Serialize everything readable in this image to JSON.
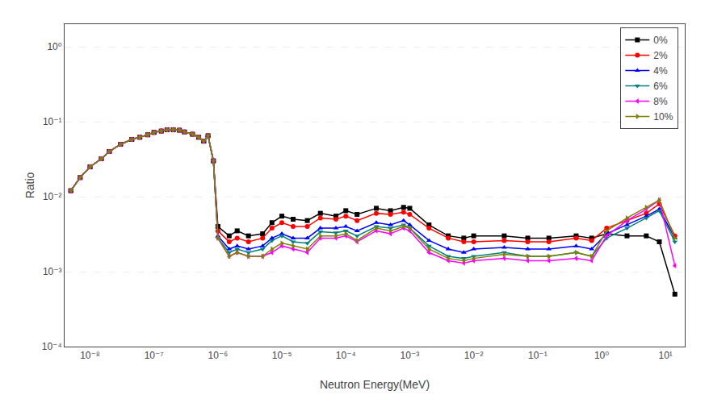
{
  "chart_data": {
    "type": "line",
    "xlabel": "Neutron Energy(MeV)",
    "ylabel": "Ratio",
    "log": true,
    "grid": "y",
    "legend": "upper right",
    "xlim": [
      4e-09,
      20
    ],
    "ylim": [
      0.0001,
      2.0
    ],
    "xticks": [
      {
        "value": 1e-08,
        "label": "10⁻⁸"
      },
      {
        "value": 1e-07,
        "label": "10⁻⁷"
      },
      {
        "value": 1e-06,
        "label": "10⁻⁶"
      },
      {
        "value": 1e-05,
        "label": "10⁻⁵"
      },
      {
        "value": 0.0001,
        "label": "10⁻⁴"
      },
      {
        "value": 0.001,
        "label": "10⁻³"
      },
      {
        "value": 0.01,
        "label": "10⁻²"
      },
      {
        "value": 0.1,
        "label": "10⁻¹"
      },
      {
        "value": 1,
        "label": "10⁰"
      },
      {
        "value": 10,
        "label": "10¹"
      }
    ],
    "yticks": [
      {
        "value": 0.0001,
        "label": "10⁻⁴"
      },
      {
        "value": 0.001,
        "label": "10⁻³"
      },
      {
        "value": 0.01,
        "label": "10⁻²"
      },
      {
        "value": 0.1,
        "label": "10⁻¹"
      },
      {
        "value": 1,
        "label": "10⁰"
      }
    ],
    "x": [
      5e-09,
      7e-09,
      1e-08,
      1.5e-08,
      2e-08,
      3e-08,
      4.5e-08,
      6e-08,
      8e-08,
      1e-07,
      1.3e-07,
      1.6e-07,
      2e-07,
      2.5e-07,
      3e-07,
      4e-07,
      5e-07,
      6e-07,
      7e-07,
      8.5e-07,
      1e-06,
      1.5e-06,
      2e-06,
      3e-06,
      5e-06,
      7e-06,
      1e-05,
      1.5e-05,
      2.5e-05,
      4e-05,
      7e-05,
      0.0001,
      0.00015,
      0.0003,
      0.0005,
      0.0008,
      0.001,
      0.002,
      0.004,
      0.007,
      0.01,
      0.03,
      0.07,
      0.15,
      0.4,
      0.7,
      1.2,
      2.5,
      5.0,
      8.0,
      14.0
    ],
    "series": [
      {
        "name": "0%",
        "color": "#000000",
        "marker": "square",
        "values": [
          0.012,
          0.018,
          0.025,
          0.032,
          0.04,
          0.05,
          0.058,
          0.062,
          0.067,
          0.072,
          0.075,
          0.078,
          0.078,
          0.077,
          0.073,
          0.068,
          0.062,
          0.055,
          0.065,
          0.03,
          0.004,
          0.003,
          0.0035,
          0.003,
          0.0032,
          0.0045,
          0.0055,
          0.005,
          0.0048,
          0.006,
          0.0055,
          0.0065,
          0.0058,
          0.007,
          0.0065,
          0.0072,
          0.007,
          0.0042,
          0.003,
          0.0028,
          0.003,
          0.003,
          0.0028,
          0.0028,
          0.003,
          0.0028,
          0.0032,
          0.003,
          0.003,
          0.0025,
          0.0005
        ]
      },
      {
        "name": "2%",
        "color": "#ff0000",
        "marker": "circle",
        "values": [
          0.012,
          0.018,
          0.025,
          0.032,
          0.04,
          0.05,
          0.058,
          0.062,
          0.067,
          0.072,
          0.075,
          0.078,
          0.078,
          0.077,
          0.073,
          0.068,
          0.062,
          0.055,
          0.065,
          0.03,
          0.0035,
          0.0025,
          0.0028,
          0.0025,
          0.0028,
          0.0038,
          0.0045,
          0.004,
          0.004,
          0.0052,
          0.005,
          0.0055,
          0.0048,
          0.006,
          0.0058,
          0.0062,
          0.0058,
          0.0038,
          0.0028,
          0.0025,
          0.0025,
          0.0026,
          0.0025,
          0.0025,
          0.0028,
          0.0026,
          0.0038,
          0.0048,
          0.006,
          0.008,
          0.003
        ]
      },
      {
        "name": "4%",
        "color": "#0000ff",
        "marker": "triangle-up",
        "values": [
          0.012,
          0.018,
          0.025,
          0.032,
          0.04,
          0.05,
          0.058,
          0.062,
          0.067,
          0.072,
          0.075,
          0.078,
          0.078,
          0.077,
          0.073,
          0.068,
          0.062,
          0.055,
          0.065,
          0.03,
          0.003,
          0.002,
          0.0022,
          0.002,
          0.0022,
          0.0028,
          0.0032,
          0.0028,
          0.0028,
          0.0038,
          0.0038,
          0.004,
          0.0035,
          0.0045,
          0.0042,
          0.0048,
          0.0042,
          0.0026,
          0.002,
          0.0018,
          0.002,
          0.0021,
          0.002,
          0.002,
          0.0022,
          0.002,
          0.0032,
          0.0042,
          0.0055,
          0.0068,
          0.0028
        ]
      },
      {
        "name": "6%",
        "color": "#008080",
        "marker": "triangle-down",
        "values": [
          0.012,
          0.018,
          0.025,
          0.032,
          0.04,
          0.05,
          0.058,
          0.062,
          0.067,
          0.072,
          0.075,
          0.078,
          0.078,
          0.077,
          0.073,
          0.068,
          0.062,
          0.055,
          0.065,
          0.03,
          0.0028,
          0.0018,
          0.002,
          0.0018,
          0.002,
          0.0026,
          0.003,
          0.0025,
          0.0024,
          0.0034,
          0.0033,
          0.0035,
          0.003,
          0.004,
          0.0038,
          0.0042,
          0.0038,
          0.0022,
          0.0016,
          0.0015,
          0.0016,
          0.0018,
          0.0016,
          0.0016,
          0.0018,
          0.0016,
          0.0028,
          0.0038,
          0.0052,
          0.0065,
          0.0025
        ]
      },
      {
        "name": "8%",
        "color": "#ff00ff",
        "marker": "triangle-left",
        "values": [
          0.012,
          0.018,
          0.025,
          0.032,
          0.04,
          0.05,
          0.058,
          0.062,
          0.067,
          0.072,
          0.075,
          0.078,
          0.078,
          0.077,
          0.073,
          0.068,
          0.062,
          0.055,
          0.065,
          0.03,
          0.0028,
          0.0016,
          0.0018,
          0.0016,
          0.0016,
          0.0018,
          0.0022,
          0.002,
          0.0018,
          0.0028,
          0.0028,
          0.003,
          0.0025,
          0.0035,
          0.0032,
          0.0038,
          0.0035,
          0.0018,
          0.0014,
          0.0013,
          0.0014,
          0.0015,
          0.0014,
          0.0014,
          0.0015,
          0.0014,
          0.003,
          0.0048,
          0.0068,
          0.009,
          0.0012
        ]
      },
      {
        "name": "10%",
        "color": "#808000",
        "marker": "triangle-right",
        "values": [
          0.012,
          0.018,
          0.025,
          0.032,
          0.04,
          0.05,
          0.058,
          0.062,
          0.067,
          0.072,
          0.075,
          0.078,
          0.078,
          0.077,
          0.073,
          0.068,
          0.062,
          0.055,
          0.065,
          0.03,
          0.0028,
          0.0016,
          0.0018,
          0.0016,
          0.0016,
          0.002,
          0.0024,
          0.0022,
          0.002,
          0.003,
          0.003,
          0.0032,
          0.0026,
          0.0038,
          0.0035,
          0.004,
          0.0038,
          0.002,
          0.0015,
          0.0014,
          0.0015,
          0.0017,
          0.0016,
          0.0016,
          0.0018,
          0.0016,
          0.0035,
          0.0052,
          0.0072,
          0.009,
          0.0028
        ]
      }
    ]
  }
}
